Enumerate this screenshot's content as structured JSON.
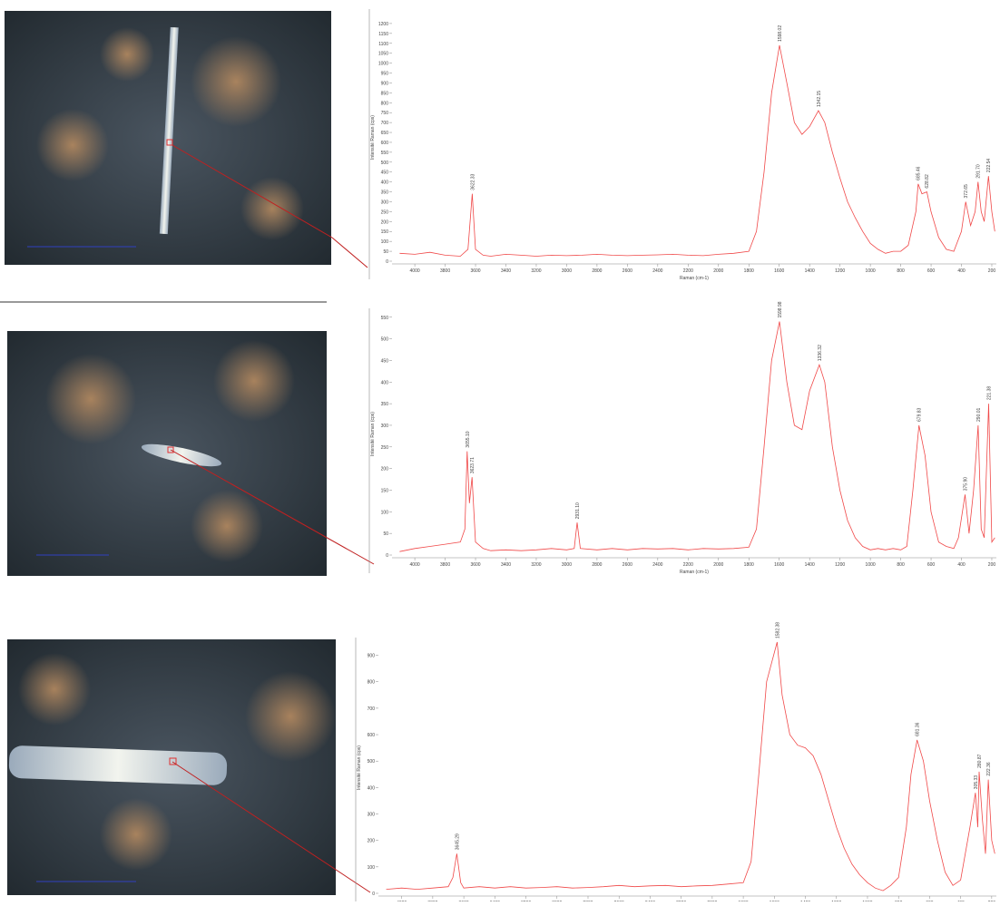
{
  "chart_data": [
    {
      "type": "line",
      "x_label": "Raman (cm-1)",
      "y_label": "Intensité Raman (cps)",
      "xlim": [
        4150,
        170
      ],
      "ylim": [
        0,
        1250
      ],
      "xticks": [
        4000,
        3800,
        3600,
        3400,
        3200,
        3000,
        2800,
        2600,
        2400,
        2200,
        2000,
        1800,
        1600,
        1400,
        1200,
        1000,
        800,
        600,
        400,
        200
      ],
      "yticks": [
        0,
        50,
        100,
        150,
        200,
        250,
        300,
        350,
        400,
        450,
        500,
        550,
        600,
        650,
        700,
        750,
        800,
        850,
        900,
        950,
        1000,
        1050,
        1100,
        1150,
        1200
      ],
      "series": [
        {
          "color": "#f04848",
          "x": [
            4100,
            4000,
            3900,
            3800,
            3700,
            3650,
            3622,
            3600,
            3550,
            3500,
            3400,
            3300,
            3200,
            3100,
            3000,
            2900,
            2800,
            2700,
            2600,
            2500,
            2400,
            2300,
            2200,
            2100,
            2000,
            1900,
            1800,
            1750,
            1700,
            1650,
            1598,
            1550,
            1500,
            1450,
            1400,
            1342,
            1300,
            1250,
            1200,
            1150,
            1100,
            1050,
            1000,
            950,
            900,
            850,
            800,
            750,
            700,
            685,
            660,
            628,
            600,
            550,
            500,
            450,
            400,
            372,
            340,
            310,
            291,
            270,
            250,
            222,
            200,
            180
          ],
          "values": [
            40,
            35,
            45,
            30,
            25,
            60,
            340,
            60,
            30,
            25,
            35,
            30,
            25,
            30,
            28,
            30,
            35,
            30,
            28,
            30,
            32,
            35,
            30,
            28,
            35,
            40,
            50,
            150,
            450,
            850,
            1090,
            900,
            700,
            640,
            680,
            760,
            700,
            550,
            420,
            300,
            220,
            150,
            90,
            60,
            40,
            50,
            50,
            80,
            250,
            390,
            340,
            350,
            250,
            120,
            60,
            50,
            150,
            300,
            180,
            250,
            400,
            250,
            200,
            430,
            250,
            150
          ]
        }
      ],
      "annotations": [
        {
          "x": 3622.33,
          "y": 340,
          "label": "3622.33"
        },
        {
          "x": 1598.02,
          "y": 1090,
          "label": "1598.02"
        },
        {
          "x": 1342.15,
          "y": 760,
          "label": "1342.15"
        },
        {
          "x": 685.46,
          "y": 390,
          "label": "685.46"
        },
        {
          "x": 628.82,
          "y": 350,
          "label": "628.82"
        },
        {
          "x": 372.65,
          "y": 300,
          "label": "372.65"
        },
        {
          "x": 291.7,
          "y": 400,
          "label": "291.70"
        },
        {
          "x": 222.54,
          "y": 430,
          "label": "222.54"
        }
      ]
    },
    {
      "type": "line",
      "x_label": "Raman (cm-1)",
      "y_label": "Intensité Raman (cps)",
      "xlim": [
        4150,
        170
      ],
      "ylim": [
        0,
        560
      ],
      "xticks": [
        4000,
        3800,
        3600,
        3400,
        3200,
        3000,
        2800,
        2600,
        2400,
        2200,
        2000,
        1800,
        1600,
        1400,
        1200,
        1000,
        800,
        600,
        400,
        200
      ],
      "yticks": [
        0,
        50,
        100,
        150,
        200,
        250,
        300,
        350,
        400,
        450,
        500,
        550
      ],
      "series": [
        {
          "color": "#f04848",
          "x": [
            4100,
            4000,
            3900,
            3800,
            3700,
            3670,
            3655,
            3640,
            3623,
            3600,
            3550,
            3500,
            3400,
            3300,
            3200,
            3100,
            3000,
            2950,
            2931,
            2910,
            2800,
            2700,
            2600,
            2500,
            2400,
            2300,
            2200,
            2100,
            2000,
            1900,
            1800,
            1750,
            1700,
            1650,
            1598,
            1550,
            1500,
            1450,
            1400,
            1336,
            1300,
            1250,
            1200,
            1150,
            1100,
            1050,
            1000,
            950,
            900,
            850,
            800,
            760,
            720,
            680,
            640,
            600,
            550,
            500,
            450,
            420,
            376,
            350,
            320,
            290,
            270,
            250,
            221,
            200,
            180
          ],
          "values": [
            8,
            15,
            20,
            25,
            30,
            60,
            240,
            120,
            180,
            30,
            15,
            10,
            12,
            10,
            12,
            15,
            12,
            15,
            75,
            15,
            12,
            15,
            12,
            15,
            14,
            15,
            12,
            15,
            14,
            15,
            18,
            60,
            250,
            450,
            540,
            400,
            300,
            290,
            380,
            440,
            400,
            250,
            150,
            80,
            40,
            20,
            12,
            15,
            12,
            15,
            12,
            20,
            150,
            300,
            230,
            100,
            30,
            20,
            15,
            40,
            140,
            50,
            150,
            300,
            60,
            40,
            350,
            30,
            40
          ]
        }
      ],
      "annotations": [
        {
          "x": 3655.1,
          "y": 240,
          "label": "3655.10"
        },
        {
          "x": 3623.71,
          "y": 180,
          "label": "3623.71"
        },
        {
          "x": 2931.1,
          "y": 75,
          "label": "2931.10"
        },
        {
          "x": 1598.98,
          "y": 540,
          "label": "1598.98"
        },
        {
          "x": 1336.32,
          "y": 440,
          "label": "1336.32"
        },
        {
          "x": 679.83,
          "y": 300,
          "label": "679.83"
        },
        {
          "x": 375.9,
          "y": 140,
          "label": "375.90"
        },
        {
          "x": 290.01,
          "y": 300,
          "label": "290.01"
        },
        {
          "x": 221.38,
          "y": 350,
          "label": "221.38"
        }
      ]
    },
    {
      "type": "line",
      "x_label": "Raman (cm-1)",
      "y_label": "Intensité Raman (cps)",
      "xlim": [
        4150,
        170
      ],
      "ylim": [
        0,
        950
      ],
      "xticks": [
        4000,
        3800,
        3600,
        3400,
        3200,
        3000,
        2800,
        2600,
        2400,
        2200,
        2000,
        1800,
        1600,
        1400,
        1200,
        1000,
        800,
        600,
        400,
        200
      ],
      "yticks": [
        0,
        100,
        200,
        300,
        400,
        500,
        600,
        700,
        800,
        900
      ],
      "series": [
        {
          "color": "#f04848",
          "x": [
            4100,
            4000,
            3900,
            3800,
            3700,
            3670,
            3645,
            3620,
            3600,
            3500,
            3400,
            3300,
            3200,
            3100,
            3000,
            2900,
            2800,
            2700,
            2600,
            2500,
            2400,
            2300,
            2200,
            2100,
            2000,
            1900,
            1800,
            1750,
            1700,
            1650,
            1582,
            1550,
            1500,
            1450,
            1400,
            1350,
            1300,
            1250,
            1200,
            1150,
            1100,
            1050,
            1000,
            950,
            900,
            850,
            800,
            750,
            720,
            681,
            640,
            600,
            550,
            500,
            450,
            400,
            340,
            305,
            290,
            281,
            260,
            240,
            222,
            200,
            180
          ],
          "values": [
            15,
            20,
            15,
            20,
            25,
            60,
            150,
            40,
            20,
            25,
            20,
            25,
            20,
            22,
            25,
            20,
            22,
            25,
            30,
            25,
            28,
            30,
            25,
            28,
            30,
            35,
            40,
            120,
            450,
            800,
            950,
            750,
            600,
            560,
            550,
            520,
            450,
            350,
            250,
            170,
            110,
            70,
            40,
            20,
            10,
            30,
            60,
            250,
            450,
            580,
            500,
            350,
            200,
            80,
            30,
            50,
            250,
            380,
            250,
            460,
            280,
            150,
            430,
            200,
            150
          ]
        }
      ],
      "annotations": [
        {
          "x": 3645.29,
          "y": 150,
          "label": "3645.29"
        },
        {
          "x": 1582.38,
          "y": 950,
          "label": "1582.38"
        },
        {
          "x": 681.36,
          "y": 580,
          "label": "681.36"
        },
        {
          "x": 305.33,
          "y": 380,
          "label": "305.33"
        },
        {
          "x": 280.87,
          "y": 460,
          "label": "280.87"
        },
        {
          "x": 222.36,
          "y": 430,
          "label": "222.36"
        }
      ]
    }
  ]
}
